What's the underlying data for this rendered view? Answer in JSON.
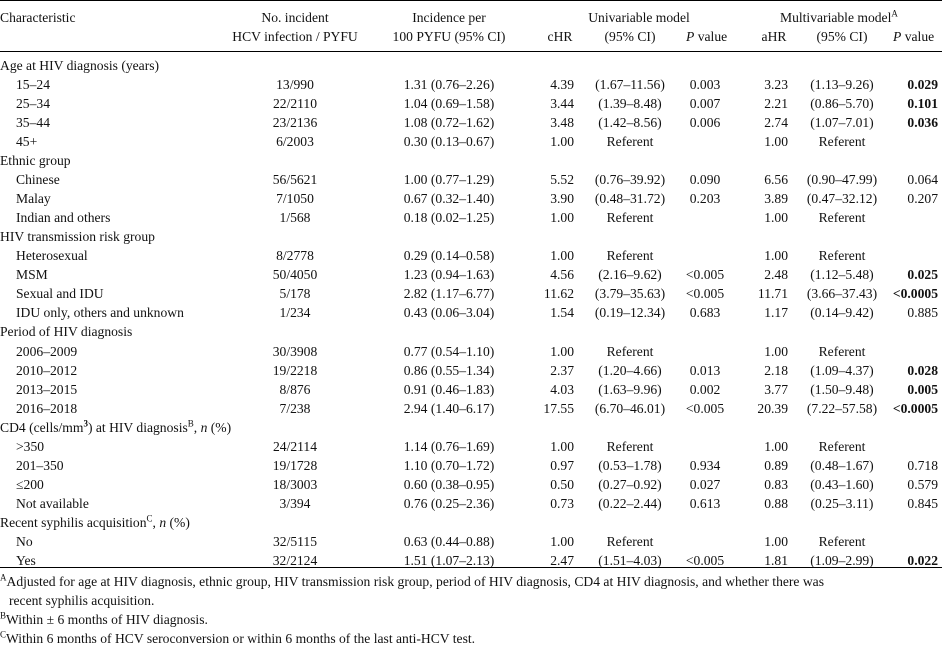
{
  "header": {
    "characteristic": "Characteristic",
    "incident_l1": "No. incident",
    "incident_l2": "HCV infection / PYFU",
    "incidence_l1": "Incidence per",
    "incidence_l2": "100 PYFU (95% CI)",
    "univariable": "Univariable model",
    "multivariable": "Multivariable model",
    "multivariable_sup": "A",
    "chr": "cHR",
    "ci": "(95% CI)",
    "p": "P",
    "value": "value",
    "ahr": "aHR"
  },
  "rows": [
    {
      "type": "group",
      "label": "Age at HIV diagnosis (years)"
    },
    {
      "type": "data",
      "label": "15–24",
      "n": "13/990",
      "inc": "1.31 (0.76–2.26)",
      "chr": "4.39",
      "cci": "(1.67–11.56)",
      "cp": "0.003",
      "ahr": "3.23",
      "aci": "(1.13–9.26)",
      "ap": "0.029",
      "bold": true
    },
    {
      "type": "data",
      "label": "25–34",
      "n": "22/2110",
      "inc": "1.04 (0.69–1.58)",
      "chr": "3.44",
      "cci": "(1.39–8.48)",
      "cp": "0.007",
      "ahr": "2.21",
      "aci": "(0.86–5.70)",
      "ap": "0.101",
      "bold": true
    },
    {
      "type": "data",
      "label": "35–44",
      "n": "23/2136",
      "inc": "1.08 (0.72–1.62)",
      "chr": "3.48",
      "cci": "(1.42–8.56)",
      "cp": "0.006",
      "ahr": "2.74",
      "aci": "(1.07–7.01)",
      "ap": "0.036",
      "bold": true
    },
    {
      "type": "data",
      "label": "45+",
      "n": "6/2003",
      "inc": "0.30 (0.13–0.67)",
      "chr": "1.00",
      "cci": "Referent",
      "cp": "",
      "ahr": "1.00",
      "aci": "Referent",
      "ap": ""
    },
    {
      "type": "group",
      "label": "Ethnic group"
    },
    {
      "type": "data",
      "label": "Chinese",
      "n": "56/5621",
      "inc": "1.00 (0.77–1.29)",
      "chr": "5.52",
      "cci": "(0.76–39.92)",
      "cp": "0.090",
      "ahr": "6.56",
      "aci": "(0.90–47.99)",
      "ap": "0.064"
    },
    {
      "type": "data",
      "label": "Malay",
      "n": "7/1050",
      "inc": "0.67 (0.32–1.40)",
      "chr": "3.90",
      "cci": "(0.48–31.72)",
      "cp": "0.203",
      "ahr": "3.89",
      "aci": "(0.47–32.12)",
      "ap": "0.207"
    },
    {
      "type": "data",
      "label": "Indian and others",
      "n": "1/568",
      "inc": "0.18 (0.02–1.25)",
      "chr": "1.00",
      "cci": "Referent",
      "cp": "",
      "ahr": "1.00",
      "aci": "Referent",
      "ap": ""
    },
    {
      "type": "group",
      "label": "HIV transmission risk group"
    },
    {
      "type": "data",
      "label": "Heterosexual",
      "n": "8/2778",
      "inc": "0.29 (0.14–0.58)",
      "chr": "1.00",
      "cci": "Referent",
      "cp": "",
      "ahr": "1.00",
      "aci": "Referent",
      "ap": ""
    },
    {
      "type": "data",
      "label": "MSM",
      "n": "50/4050",
      "inc": "1.23 (0.94–1.63)",
      "chr": "4.56",
      "cci": "(2.16–9.62)",
      "cp": "<0.005",
      "ahr": "2.48",
      "aci": "(1.12–5.48)",
      "ap": "0.025",
      "bold": true
    },
    {
      "type": "data",
      "label": "Sexual and IDU",
      "n": "5/178",
      "inc": "2.82 (1.17–6.77)",
      "chr": "11.62",
      "cci": "(3.79–35.63)",
      "cp": "<0.005",
      "ahr": "11.71",
      "aci": "(3.66–37.43)",
      "ap": "<0.0005",
      "bold": true
    },
    {
      "type": "data",
      "label": "IDU only, others and unknown",
      "n": "1/234",
      "inc": "0.43 (0.06–3.04)",
      "chr": "1.54",
      "cci": "(0.19–12.34)",
      "cp": "0.683",
      "ahr": "1.17",
      "aci": "(0.14–9.42)",
      "ap": "0.885"
    },
    {
      "type": "group",
      "label": "Period of HIV diagnosis"
    },
    {
      "type": "data",
      "label": "2006–2009",
      "n": "30/3908",
      "inc": "0.77 (0.54–1.10)",
      "chr": "1.00",
      "cci": "Referent",
      "cp": "",
      "ahr": "1.00",
      "aci": "Referent",
      "ap": ""
    },
    {
      "type": "data",
      "label": "2010–2012",
      "n": "19/2218",
      "inc": "0.86 (0.55–1.34)",
      "chr": "2.37",
      "cci": "(1.20–4.66)",
      "cp": "0.013",
      "ahr": "2.18",
      "aci": "(1.09–4.37)",
      "ap": "0.028",
      "bold": true
    },
    {
      "type": "data",
      "label": "2013–2015",
      "n": "8/876",
      "inc": "0.91 (0.46–1.83)",
      "chr": "4.03",
      "cci": "(1.63–9.96)",
      "cp": "0.002",
      "ahr": "3.77",
      "aci": "(1.50–9.48)",
      "ap": "0.005",
      "bold": true
    },
    {
      "type": "data",
      "label": "2016–2018",
      "n": "7/238",
      "inc": "2.94 (1.40–6.17)",
      "chr": "17.55",
      "cci": "(6.70–46.01)",
      "cp": "<0.005",
      "ahr": "20.39",
      "aci": "(7.22–57.58)",
      "ap": "<0.0005",
      "bold": true
    },
    {
      "type": "group_cd4",
      "label_a": "CD4 (cells/mm",
      "label_sup3": "3",
      "label_b": ") at HIV diagnosis",
      "label_supB": "B",
      "label_c": ", ",
      "label_n": "n",
      "label_d": " (%)"
    },
    {
      "type": "data",
      "label": ">350",
      "n": "24/2114",
      "inc": "1.14 (0.76–1.69)",
      "chr": "1.00",
      "cci": "Referent",
      "cp": "",
      "ahr": "1.00",
      "aci": "Referent",
      "ap": ""
    },
    {
      "type": "data",
      "label": "201–350",
      "n": "19/1728",
      "inc": "1.10 (0.70–1.72)",
      "chr": "0.97",
      "cci": "(0.53–1.78)",
      "cp": "0.934",
      "ahr": "0.89",
      "aci": "(0.48–1.67)",
      "ap": "0.718"
    },
    {
      "type": "data",
      "label": "≤200",
      "n": "18/3003",
      "inc": "0.60 (0.38–0.95)",
      "chr": "0.50",
      "cci": "(0.27–0.92)",
      "cp": "0.027",
      "ahr": "0.83",
      "aci": "(0.43–1.60)",
      "ap": "0.579"
    },
    {
      "type": "data",
      "label": "Not available",
      "n": "3/394",
      "inc": "0.76 (0.25–2.36)",
      "chr": "0.73",
      "cci": "(0.22–2.44)",
      "cp": "0.613",
      "ahr": "0.88",
      "aci": "(0.25–3.11)",
      "ap": "0.845"
    },
    {
      "type": "group_syph",
      "label_a": "Recent syphilis acquisition",
      "label_supC": "C",
      "label_c": ", ",
      "label_n": "n",
      "label_d": " (%)"
    },
    {
      "type": "data",
      "label": "No",
      "n": "32/5115",
      "inc": "0.63 (0.44–0.88)",
      "chr": "1.00",
      "cci": "Referent",
      "cp": "",
      "ahr": "1.00",
      "aci": "Referent",
      "ap": ""
    },
    {
      "type": "data",
      "label": "Yes",
      "n": "32/2124",
      "inc": "1.51 (1.07–2.13)",
      "chr": "2.47",
      "cci": "(1.51–4.03)",
      "cp": "<0.005",
      "ahr": "1.81",
      "aci": "(1.09–2.99)",
      "ap": "0.022",
      "bold": true
    }
  ],
  "notes": {
    "a_sup": "A",
    "a_text_1": "Adjusted for age at HIV diagnosis, ethnic group, HIV transmission risk group, period of HIV diagnosis, CD4 at HIV diagnosis, and whether there was",
    "a_text_2": "recent syphilis acquisition.",
    "b_sup": "B",
    "b_text": "Within ± 6 months of HIV diagnosis.",
    "c_sup": "C",
    "c_text": "Within 6 months of HCV seroconversion or within 6 months of the last anti-HCV test."
  }
}
